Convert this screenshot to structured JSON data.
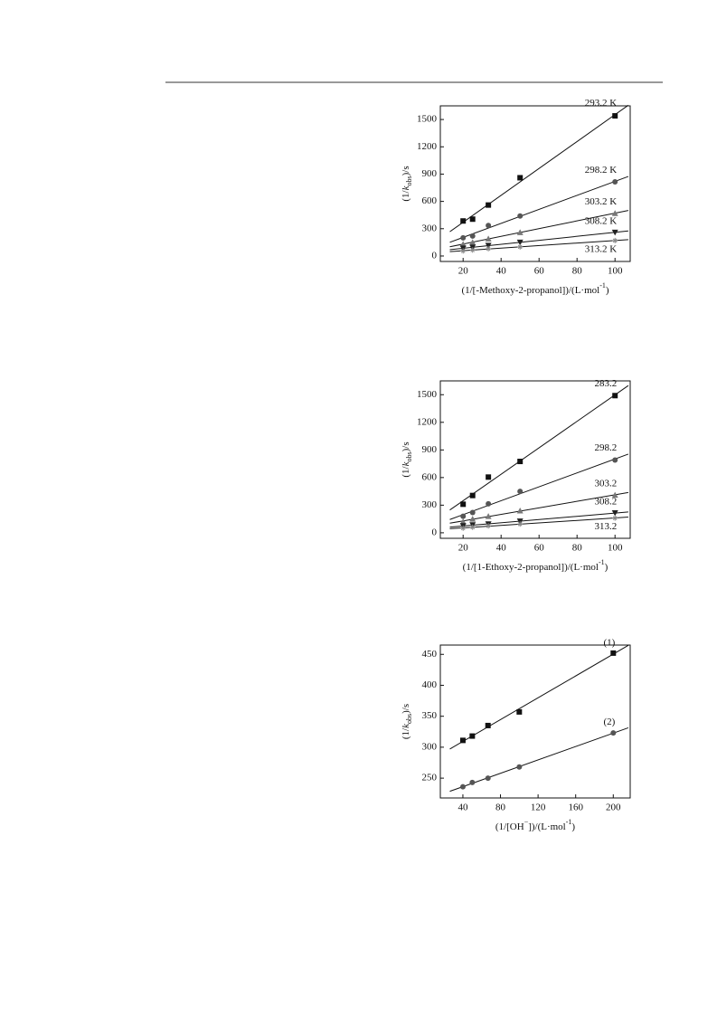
{
  "chart_data": [
    {
      "type": "scatter",
      "grid": false,
      "ylabel": [
        "(1/",
        {
          "text": "k",
          "style": "italic"
        },
        {
          "text": "obs",
          "style": "sub"
        },
        ")/s"
      ],
      "xlabel": [
        "(1/[-Methoxy-2-propanol])/(L·mol",
        {
          "text": "-1",
          "style": "sup"
        },
        ")"
      ],
      "x": [
        20,
        25,
        33.3,
        50,
        100
      ],
      "xlim": [
        8,
        108
      ],
      "xticks": [
        20,
        40,
        60,
        80,
        100
      ],
      "ylim": [
        -60,
        1650
      ],
      "yticks": [
        0,
        300,
        600,
        900,
        1200,
        1500
      ],
      "series": [
        {
          "name": "293.2 K",
          "color": "#111111",
          "marker": "square",
          "values": [
            385,
            405,
            560,
            860,
            1540
          ]
        },
        {
          "name": "298.2 K",
          "color": "#555555",
          "marker": "circle",
          "values": [
            200,
            220,
            335,
            440,
            815
          ]
        },
        {
          "name": "303.2 K",
          "color": "#777777",
          "marker": "triangle",
          "values": [
            130,
            150,
            190,
            260,
            470
          ]
        },
        {
          "name": "308.2 K",
          "color": "#222222",
          "marker": "triangle-down",
          "values": [
            85,
            95,
            115,
            150,
            260
          ]
        },
        {
          "name": "313.2 K",
          "color": "#888888",
          "marker": "star",
          "values": [
            55,
            65,
            80,
            100,
            170
          ]
        }
      ]
    },
    {
      "type": "scatter",
      "grid": false,
      "ylabel": [
        "(1/",
        {
          "text": "k",
          "style": "italic"
        },
        {
          "text": "obs",
          "style": "sub"
        },
        ")/s"
      ],
      "xlabel": [
        "(1/[1-Ethoxy-2-propanol])/(L·mol",
        {
          "text": "-1",
          "style": "sup"
        },
        ")"
      ],
      "x": [
        20,
        25,
        33.3,
        50,
        100
      ],
      "xlim": [
        8,
        108
      ],
      "xticks": [
        20,
        40,
        60,
        80,
        100
      ],
      "ylim": [
        -60,
        1650
      ],
      "yticks": [
        0,
        300,
        600,
        900,
        1200,
        1500
      ],
      "series": [
        {
          "name": "283.2",
          "color": "#111111",
          "marker": "square",
          "values": [
            310,
            405,
            605,
            775,
            1490
          ]
        },
        {
          "name": "298.2",
          "color": "#555555",
          "marker": "circle",
          "values": [
            180,
            220,
            315,
            450,
            790
          ]
        },
        {
          "name": "303.2",
          "color": "#777777",
          "marker": "triangle",
          "values": [
            120,
            150,
            180,
            240,
            410
          ]
        },
        {
          "name": "308.2",
          "color": "#222222",
          "marker": "triangle-down",
          "values": [
            75,
            85,
            95,
            125,
            215
          ]
        },
        {
          "name": "313.2",
          "color": "#888888",
          "marker": "star",
          "values": [
            50,
            60,
            75,
            95,
            160
          ]
        }
      ]
    },
    {
      "type": "scatter",
      "grid": false,
      "ylabel": [
        "(1/",
        {
          "text": "k",
          "style": "italic"
        },
        {
          "text": "obs",
          "style": "sub"
        },
        ")/s"
      ],
      "xlabel": [
        "(1/[OH",
        {
          "text": "−",
          "style": "sup"
        },
        "])/(L·mol",
        {
          "text": "-1",
          "style": "sup"
        },
        ")"
      ],
      "x": [
        40,
        50,
        66.7,
        100,
        200
      ],
      "xlim": [
        16,
        218
      ],
      "xticks": [
        40,
        80,
        120,
        160,
        200
      ],
      "ylim": [
        218,
        465
      ],
      "yticks": [
        250,
        300,
        350,
        400,
        450
      ],
      "series": [
        {
          "name": "(1)",
          "color": "#111111",
          "marker": "square",
          "values": [
            311,
            318,
            335,
            357,
            452
          ]
        },
        {
          "name": "(2)",
          "color": "#555555",
          "marker": "circle",
          "values": [
            236,
            243,
            250,
            268,
            323
          ]
        }
      ]
    }
  ]
}
